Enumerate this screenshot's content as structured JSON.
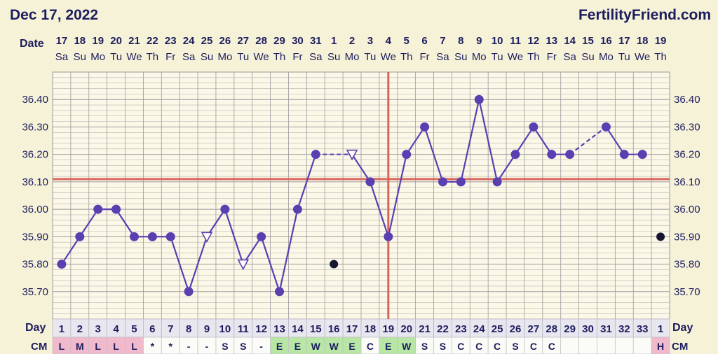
{
  "header": {
    "date_title": "Dec 17, 2022",
    "site": "FertilityFriend.com"
  },
  "labels": {
    "date_row": "Date",
    "day_row": "Day",
    "cm_row": "CM"
  },
  "colors": {
    "background": "#f6f2d8",
    "plot_background": "#fbf8e8",
    "grid": "#9a9a9a",
    "line": "#5a3fb0",
    "point": "#5a3fb0",
    "coverline": "#d7655a",
    "ovulation_line": "#d7655a",
    "text": "#1d1d5e",
    "cm_menstrual": "#f0b9cc",
    "cm_egg_white": "#b8e6a4"
  },
  "chart_data": {
    "type": "line",
    "title": "",
    "ylabel": "",
    "ylim": [
      35.6,
      36.5
    ],
    "y_ticks": [
      "35.70",
      "35.80",
      "35.90",
      "36.00",
      "36.10",
      "36.20",
      "36.30",
      "36.40"
    ],
    "dates": [
      "17",
      "18",
      "19",
      "20",
      "21",
      "22",
      "23",
      "24",
      "25",
      "26",
      "27",
      "28",
      "29",
      "30",
      "31",
      "1",
      "2",
      "3",
      "4",
      "5",
      "6",
      "7",
      "8",
      "9",
      "10",
      "11",
      "12",
      "13",
      "14",
      "15",
      "16",
      "17",
      "18",
      "19"
    ],
    "weekdays": [
      "Sa",
      "Su",
      "Mo",
      "Tu",
      "We",
      "Th",
      "Fr",
      "Sa",
      "Su",
      "Mo",
      "Tu",
      "We",
      "Th",
      "Fr",
      "Sa",
      "Su",
      "Mo",
      "Tu",
      "We",
      "Th",
      "Fr",
      "Sa",
      "Su",
      "Mo",
      "Tu",
      "We",
      "Th",
      "Fr",
      "Sa",
      "Su",
      "Mo",
      "Tu",
      "We",
      "Th"
    ],
    "cycle_days": [
      "1",
      "2",
      "3",
      "4",
      "5",
      "6",
      "7",
      "8",
      "9",
      "10",
      "11",
      "12",
      "13",
      "14",
      "15",
      "16",
      "17",
      "18",
      "19",
      "20",
      "21",
      "22",
      "23",
      "24",
      "25",
      "26",
      "27",
      "28",
      "29",
      "30",
      "31",
      "32",
      "33",
      "1"
    ],
    "cervical_mucus": [
      "L",
      "M",
      "L",
      "L",
      "L",
      "*",
      "*",
      "-",
      "-",
      "S",
      "S",
      "-",
      "E",
      "E",
      "W",
      "W",
      "E",
      "C",
      "E",
      "W",
      "S",
      "S",
      "C",
      "C",
      "C",
      "S",
      "C",
      "C",
      "",
      "",
      "",
      "",
      "",
      "H"
    ],
    "cm_highlight": [
      "menstrual",
      "menstrual",
      "menstrual",
      "menstrual",
      "menstrual",
      "",
      "",
      "",
      "",
      "",
      "",
      "",
      "egg_white",
      "egg_white",
      "egg_white",
      "egg_white",
      "egg_white",
      "",
      "egg_white",
      "egg_white",
      "",
      "",
      "",
      "",
      "",
      "",
      "",
      "",
      "",
      "",
      "",
      "",
      "",
      "menstrual"
    ],
    "temperatures": [
      35.8,
      35.9,
      36.0,
      36.0,
      35.9,
      35.9,
      35.9,
      35.7,
      35.9,
      36.0,
      35.8,
      35.9,
      35.7,
      36.0,
      36.2,
      35.8,
      36.2,
      36.1,
      35.9,
      36.2,
      36.3,
      36.1,
      36.1,
      36.4,
      36.1,
      36.2,
      36.3,
      36.2,
      36.2,
      null,
      36.3,
      36.2,
      36.2,
      35.9
    ],
    "point_style": [
      "circle",
      "circle",
      "circle",
      "circle",
      "circle",
      "circle",
      "circle",
      "circle",
      "open-triangle",
      "circle",
      "open-triangle",
      "circle",
      "circle",
      "circle",
      "circle",
      "discarded",
      "open-triangle",
      "circle",
      "circle",
      "circle",
      "circle",
      "circle",
      "circle",
      "circle",
      "circle",
      "circle",
      "circle",
      "circle",
      "circle",
      "none",
      "circle",
      "circle",
      "circle",
      "discarded"
    ],
    "connectors": [
      [
        0,
        1,
        "solid"
      ],
      [
        1,
        2,
        "solid"
      ],
      [
        2,
        3,
        "solid"
      ],
      [
        3,
        4,
        "solid"
      ],
      [
        4,
        5,
        "solid"
      ],
      [
        5,
        6,
        "solid"
      ],
      [
        6,
        7,
        "solid"
      ],
      [
        7,
        8,
        "solid"
      ],
      [
        8,
        9,
        "solid"
      ],
      [
        9,
        10,
        "solid"
      ],
      [
        10,
        11,
        "solid"
      ],
      [
        11,
        12,
        "solid"
      ],
      [
        12,
        13,
        "solid"
      ],
      [
        13,
        14,
        "solid"
      ],
      [
        14,
        16,
        "dashed"
      ],
      [
        16,
        17,
        "solid"
      ],
      [
        17,
        18,
        "solid"
      ],
      [
        18,
        19,
        "solid"
      ],
      [
        19,
        20,
        "solid"
      ],
      [
        20,
        21,
        "solid"
      ],
      [
        21,
        22,
        "solid"
      ],
      [
        22,
        23,
        "solid"
      ],
      [
        23,
        24,
        "solid"
      ],
      [
        24,
        25,
        "solid"
      ],
      [
        25,
        26,
        "solid"
      ],
      [
        26,
        27,
        "solid"
      ],
      [
        27,
        28,
        "solid"
      ],
      [
        28,
        30,
        "dashed"
      ],
      [
        30,
        31,
        "solid"
      ],
      [
        31,
        32,
        "solid"
      ]
    ],
    "coverline": 36.11,
    "ovulation_index": 18,
    "grid": true
  }
}
